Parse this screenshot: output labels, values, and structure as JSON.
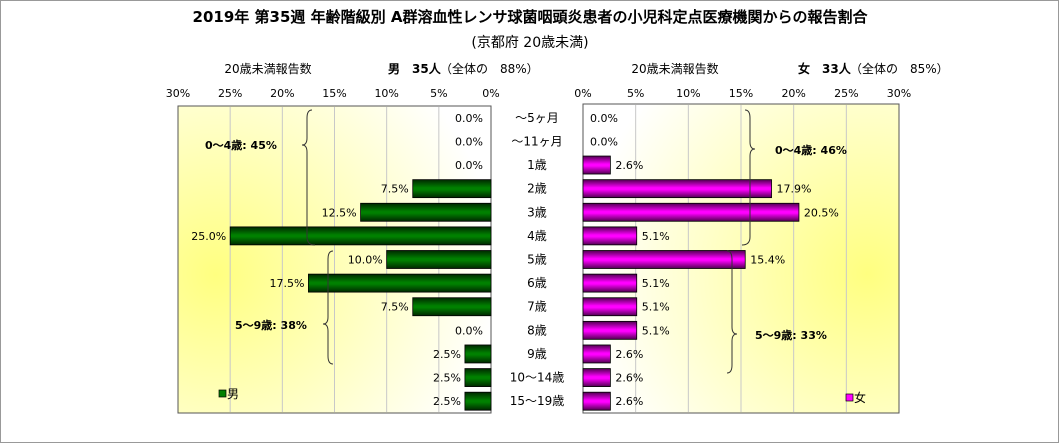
{
  "chart_data": {
    "type": "bar",
    "title": "2019年 第35週 年齢階級別 A群溶血性レンサ球菌咽頭炎患者の小児科定点医療機関からの報告割合",
    "subtitle": "(京都府 20歳未満)",
    "categories": [
      "～5ヶ月",
      "～11ヶ月",
      "1歳",
      "2歳",
      "3歳",
      "4歳",
      "5歳",
      "6歳",
      "7歳",
      "8歳",
      "9歳",
      "10～14歳",
      "15～19歳"
    ],
    "xlim": [
      0,
      30
    ],
    "ticks": [
      "0%",
      "5%",
      "10%",
      "15%",
      "20%",
      "25%",
      "30%"
    ],
    "grid": true,
    "series": [
      {
        "name": "男",
        "header_label": "20歳未満報告数",
        "header_count": "男　35人",
        "header_share": "（全体の　88%）",
        "color": "#008000",
        "values": [
          0,
          0,
          0,
          7.5,
          12.5,
          25.0,
          10.0,
          17.5,
          7.5,
          0,
          2.5,
          2.5,
          2.5
        ],
        "labels": [
          "0.0%",
          "0.0%",
          "0.0%",
          "7.5%",
          "12.5%",
          "25.0%",
          "10.0%",
          "17.5%",
          "7.5%",
          "0.0%",
          "2.5%",
          "2.5%",
          "2.5%"
        ],
        "groups": [
          {
            "label": "0～4歳: 45%"
          },
          {
            "label": "5～9歳: 38%"
          }
        ],
        "legend": "男"
      },
      {
        "name": "女",
        "header_label": "20歳未満報告数",
        "header_count": "女　33人",
        "header_share": "（全体の　85%）",
        "color": "#ff00ff",
        "values": [
          0,
          0,
          2.6,
          17.9,
          20.5,
          5.1,
          15.4,
          5.1,
          5.1,
          5.1,
          2.6,
          2.6,
          2.6
        ],
        "labels": [
          "0.0%",
          "0.0%",
          "2.6%",
          "17.9%",
          "20.5%",
          "5.1%",
          "15.4%",
          "5.1%",
          "5.1%",
          "5.1%",
          "2.6%",
          "2.6%",
          "2.6%"
        ],
        "groups": [
          {
            "label": "0～4歳: 46%"
          },
          {
            "label": "5～9歳: 33%"
          }
        ],
        "legend": "女"
      }
    ]
  }
}
